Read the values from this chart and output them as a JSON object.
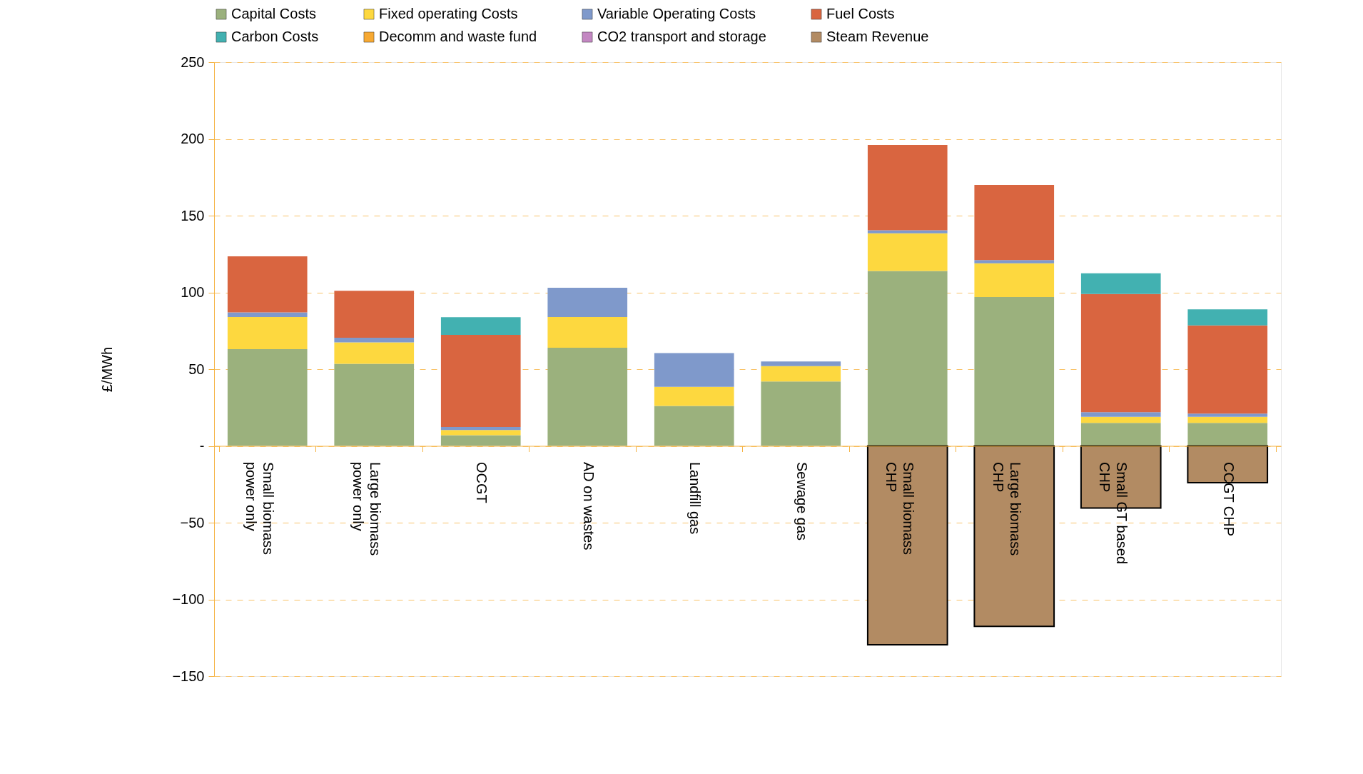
{
  "chart_data": {
    "type": "bar",
    "stacked": true,
    "ylabel": "£/MWh",
    "categories": [
      "Small biomass power only",
      "Large biomass power only",
      "OCGT",
      "AD on wastes",
      "Landfill gas",
      "Sewage gas",
      "Small biomass CHP",
      "Large biomass CHP",
      "Small GT based CHP",
      "CCGT CHP"
    ],
    "series": [
      {
        "name": "Capital Costs",
        "color": "#9bb17d",
        "values": [
          63,
          53.5,
          7,
          64,
          26,
          42,
          114,
          97,
          15,
          15
        ]
      },
      {
        "name": "Fixed operating Costs",
        "color": "#fdd83f",
        "values": [
          21,
          14,
          3.3,
          20,
          12.5,
          10,
          24.5,
          22,
          4,
          4
        ]
      },
      {
        "name": "Variable Operating Costs",
        "color": "#7f99cb",
        "values": [
          3,
          3,
          2,
          19,
          22,
          3,
          2,
          2,
          3,
          2
        ]
      },
      {
        "name": "Fuel Costs",
        "color": "#d96540",
        "values": [
          36.5,
          30.5,
          60,
          0,
          0,
          0,
          55.5,
          49,
          77,
          57.5
        ]
      },
      {
        "name": "Carbon Costs",
        "color": "#42b1b1",
        "values": [
          0,
          0,
          11.5,
          0,
          0,
          0,
          0,
          0,
          13.5,
          10.5
        ]
      },
      {
        "name": "Decomm and waste fund",
        "color": "#f7a932",
        "values": [
          0,
          0,
          0,
          0,
          0,
          0,
          0,
          0,
          0,
          0
        ]
      },
      {
        "name": "CO2 transport and storage",
        "color": "#c387c2",
        "values": [
          0,
          0,
          0,
          0,
          0,
          0,
          0,
          0,
          0,
          0
        ]
      },
      {
        "name": "Steam Revenue",
        "color": "#b28b63",
        "values": [
          0,
          0,
          0,
          0,
          0,
          0,
          -129.5,
          -117.5,
          -40.5,
          -24
        ]
      }
    ],
    "ylim": [
      -150,
      250
    ],
    "yticks": [
      -150,
      -100,
      -50,
      {
        "value": 0,
        "label": "-"
      },
      50,
      100,
      150,
      200,
      250
    ],
    "grid": "y",
    "legend": "top"
  }
}
